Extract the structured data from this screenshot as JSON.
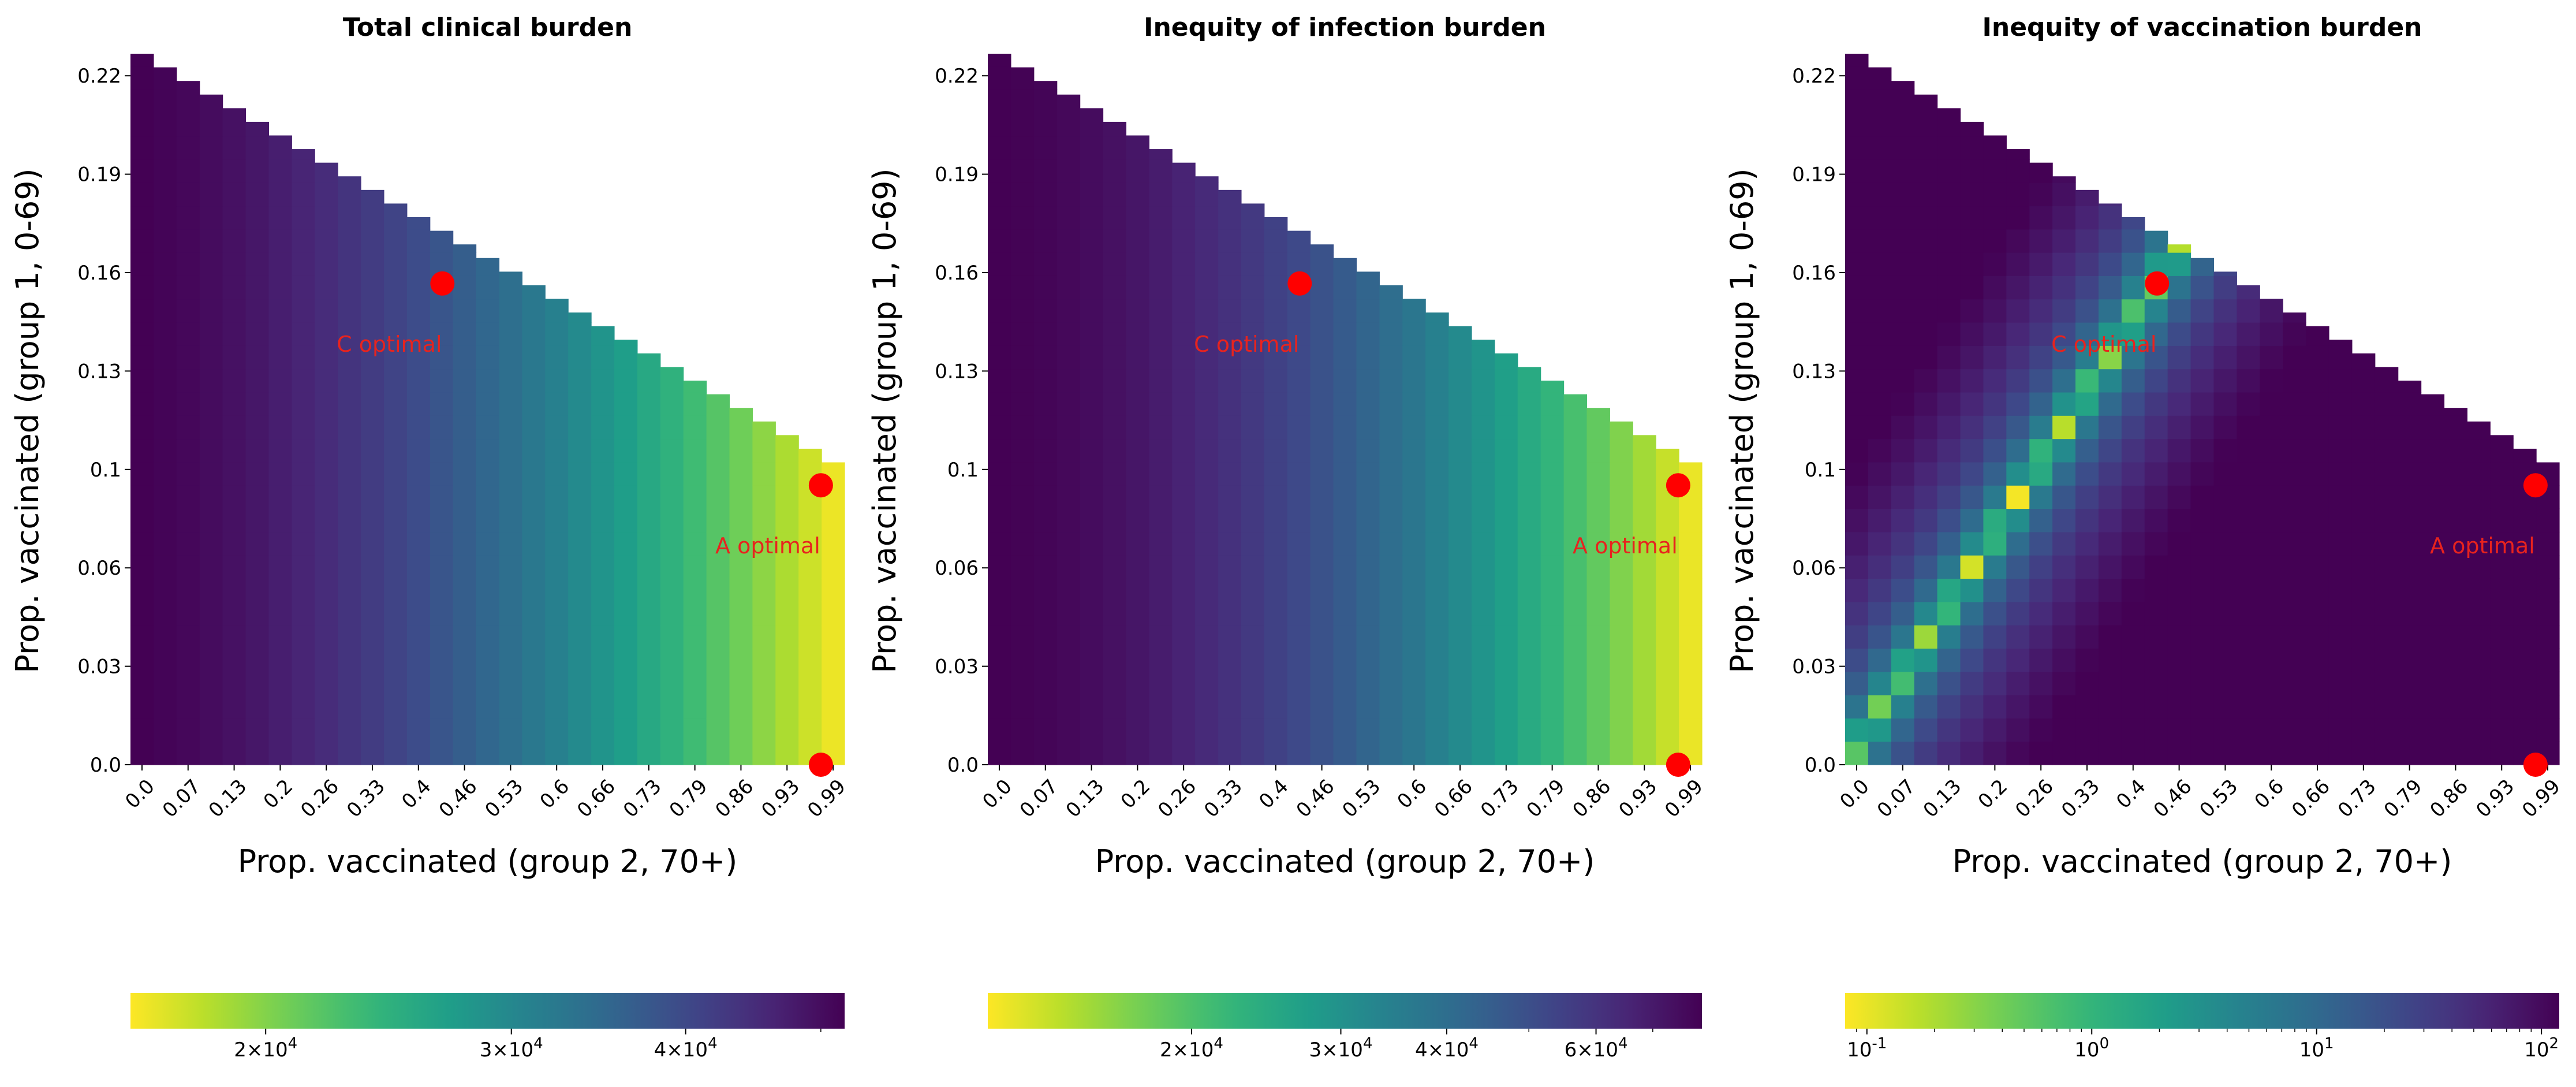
{
  "colors": {
    "marker": "#ff0000",
    "annotation": "#e8231e",
    "background": "#ffffff",
    "viridis": [
      "#440154",
      "#482878",
      "#3e4989",
      "#31688e",
      "#26828e",
      "#1f9e89",
      "#35b779",
      "#6ece58",
      "#b5de2b",
      "#fde725"
    ]
  },
  "chart_data": [
    {
      "type": "heatmap",
      "title": "Total clinical burden",
      "xlabel": "Prop. vaccinated (group 2, 70+)",
      "ylabel": "Prop. vaccinated (group 1, 0-69)",
      "x_tick_labels": [
        "0.0",
        "0.07",
        "0.13",
        "0.2",
        "0.26",
        "0.33",
        "0.4",
        "0.46",
        "0.53",
        "0.6",
        "0.66",
        "0.73",
        "0.79",
        "0.86",
        "0.93",
        "0.99"
      ],
      "y_tick_labels": [
        "0.0",
        "0.03",
        "0.06",
        "0.1",
        "0.13",
        "0.16",
        "0.19",
        "0.22"
      ],
      "x_range": [
        0.0,
        1.0
      ],
      "y_range": [
        0.0,
        0.229
      ],
      "feasible_region": "y <= 0.229 - 0.136 * x",
      "value_trend": "increases with x",
      "colorbar": {
        "scale": "log",
        "colormap": "viridis (reversed)",
        "range": [
          16000,
          52000
        ],
        "tick_labels": [
          "2×10^4",
          "3×10^4",
          "4×10^4"
        ],
        "tick_values": [
          20000,
          30000,
          40000
        ]
      },
      "markers": [
        {
          "x": 0.44,
          "y": 0.155,
          "label": "C optimal"
        },
        {
          "x": 0.97,
          "y": 0.09,
          "label": "A optimal"
        },
        {
          "x": 0.97,
          "y": 0.0,
          "label": ""
        }
      ]
    },
    {
      "type": "heatmap",
      "title": "Inequity of infection burden",
      "xlabel": "Prop. vaccinated (group 2, 70+)",
      "ylabel": "Prop. vaccinated (group 1, 0-69)",
      "x_tick_labels": [
        "0.0",
        "0.07",
        "0.13",
        "0.2",
        "0.26",
        "0.33",
        "0.4",
        "0.46",
        "0.53",
        "0.6",
        "0.66",
        "0.73",
        "0.79",
        "0.86",
        "0.93",
        "0.99"
      ],
      "y_tick_labels": [
        "0.0",
        "0.03",
        "0.06",
        "0.1",
        "0.13",
        "0.16",
        "0.19",
        "0.22"
      ],
      "x_range": [
        0.0,
        1.0
      ],
      "y_range": [
        0.0,
        0.229
      ],
      "feasible_region": "y <= 0.229 - 0.136 * x",
      "value_trend": "increases with x",
      "colorbar": {
        "scale": "log",
        "colormap": "viridis (reversed)",
        "range": [
          11500,
          80000
        ],
        "tick_labels": [
          "2×10^4",
          "3×10^4",
          "4×10^4",
          "6×10^4"
        ],
        "tick_values": [
          20000,
          30000,
          40000,
          60000
        ]
      },
      "markers": [
        {
          "x": 0.44,
          "y": 0.155,
          "label": "C optimal"
        },
        {
          "x": 0.97,
          "y": 0.09,
          "label": "A optimal"
        },
        {
          "x": 0.97,
          "y": 0.0,
          "label": ""
        }
      ]
    },
    {
      "type": "heatmap",
      "title": "Inequity of vaccination burden",
      "xlabel": "Prop. vaccinated (group 2, 70+)",
      "ylabel": "Prop. vaccinated (group 1, 0-69)",
      "x_tick_labels": [
        "0.0",
        "0.07",
        "0.13",
        "0.2",
        "0.26",
        "0.33",
        "0.4",
        "0.46",
        "0.53",
        "0.6",
        "0.66",
        "0.73",
        "0.79",
        "0.86",
        "0.93",
        "0.99"
      ],
      "y_tick_labels": [
        "0.0",
        "0.03",
        "0.06",
        "0.1",
        "0.13",
        "0.16",
        "0.19",
        "0.22"
      ],
      "x_range": [
        0.0,
        1.0
      ],
      "y_range": [
        0.0,
        0.229
      ],
      "feasible_region": "y <= 0.229 - 0.136 * x",
      "value_trend": "minimum along diagonal ridge y ≈ 0.357 * x, increasing away from it",
      "colorbar": {
        "scale": "log",
        "colormap": "viridis (reversed)",
        "range": [
          0.08,
          120
        ],
        "tick_labels": [
          "10^-1",
          "10^0",
          "10^1",
          "10^2"
        ],
        "tick_values": [
          0.1,
          1,
          10,
          100
        ]
      },
      "markers": [
        {
          "x": 0.44,
          "y": 0.155,
          "label": "C optimal"
        },
        {
          "x": 0.97,
          "y": 0.09,
          "label": "A optimal"
        },
        {
          "x": 0.97,
          "y": 0.0,
          "label": ""
        }
      ]
    }
  ]
}
